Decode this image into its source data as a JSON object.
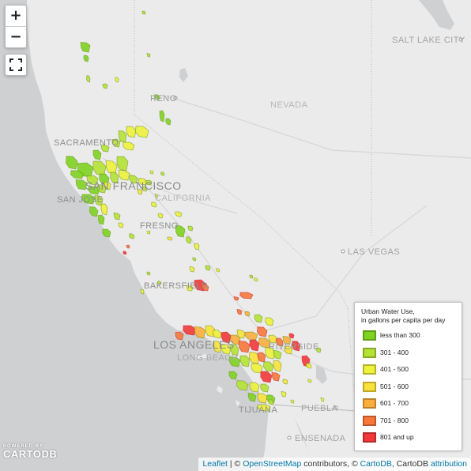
{
  "map": {
    "labels": {
      "salt_lake_city": "SALT LAKE CITY",
      "reno": "RENO",
      "nevada": "NEVADA",
      "sacramento": "SACRAMENTO",
      "san_francisco": "SAN FRANCISCO",
      "california": "CALIFORNIA",
      "san_jose": "SAN JOSE",
      "fresno": "FRESNO",
      "las_vegas": "LAS VEGAS",
      "bakersfield": "BAKERSFIELD",
      "los_angeles": "LOS ANGELES",
      "long_beach": "LONG BEACH",
      "riverside": "RIVERSIDE",
      "tijuana": "TIJUANA",
      "puebla": "PUEBLA",
      "ensenada": "ENSENADA"
    }
  },
  "controls": {
    "zoom_in": "+",
    "zoom_out": "−"
  },
  "legend": {
    "title_line1": "Urban Water Use,",
    "title_line2": "in gallons per capita per day",
    "items": [
      {
        "label": "less than 300",
        "color": "#7ed321"
      },
      {
        "label": "301 - 400",
        "color": "#b4e234"
      },
      {
        "label": "401 - 500",
        "color": "#eef23a"
      },
      {
        "label": "501 - 600",
        "color": "#fbe23a"
      },
      {
        "label": "601 - 700",
        "color": "#fbae3c"
      },
      {
        "label": "701 - 800",
        "color": "#f7773b"
      },
      {
        "label": "801 and up",
        "color": "#f2383a"
      }
    ]
  },
  "attribution": {
    "leaflet": "Leaflet",
    "sep1": " | © ",
    "osm": "OpenStreetMap",
    "contributors": " contributors, © ",
    "cartodb": "CartoDB",
    "cartodb2": ", CartoDB ",
    "attribution_link": "attribution"
  },
  "logo": {
    "small": "POWERED BY",
    "big": "CARTODB"
  }
}
